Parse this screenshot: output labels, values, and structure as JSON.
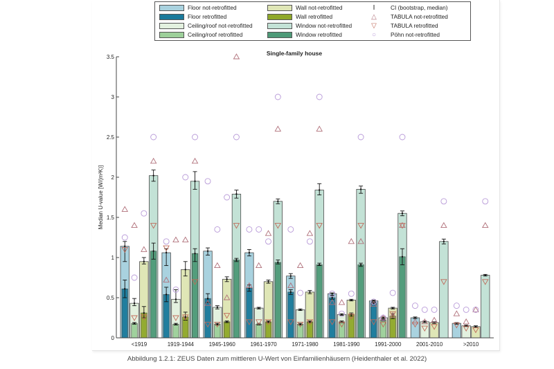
{
  "caption": "Abbildung 1.2.1: ZEUS Daten zum mittleren U-Wert von Einfamilienhäusern (Heidenthaler et al. 2022)",
  "legend": {
    "items": [
      {
        "label": "Floor not-retrofitted",
        "color": "#a9d2df",
        "kind": "swatch"
      },
      {
        "label": "Floor retrofitted",
        "color": "#1a7a9b",
        "kind": "swatch"
      },
      {
        "label": "Ceiling/roof not-retrofitted",
        "color": "#e3f1df",
        "kind": "swatch"
      },
      {
        "label": "Ceiling/roof retrofitted",
        "color": "#9dd09a",
        "kind": "swatch"
      },
      {
        "label": "Wall not-retrofitted",
        "color": "#dfe6b6",
        "kind": "swatch"
      },
      {
        "label": "Wall retrofitted",
        "color": "#8fa82a",
        "kind": "swatch"
      },
      {
        "label": "Window not-retrofitted",
        "color": "#c3e2d6",
        "kind": "swatch"
      },
      {
        "label": "Window retrofitted",
        "color": "#4e9a78",
        "kind": "swatch"
      },
      {
        "label": "CI (bootstrap, median)",
        "symbol": "I",
        "color": "#222222",
        "kind": "symbol"
      },
      {
        "label": "TABULA not-retrofitted",
        "symbol": "△",
        "color": "#b0707a",
        "kind": "symbol"
      },
      {
        "label": "TABULA retrofitted",
        "symbol": "▽",
        "color": "#c06a5a",
        "kind": "symbol"
      },
      {
        "label": "Pöhn not-retrofitted",
        "symbol": "○",
        "color": "#b89ad8",
        "kind": "symbol"
      }
    ]
  },
  "chart_data": {
    "type": "bar",
    "title": "Single-family house",
    "xlabel": "",
    "ylabel": "Median U-value [W/(m²K)]",
    "ylim": [
      0,
      3.5
    ],
    "yticks": [
      0,
      0.5,
      1,
      1.5,
      2,
      2.5,
      3,
      3.5
    ],
    "ytick_labels": [
      "0",
      "0.5",
      "1",
      "1.5",
      "2",
      "2.5",
      "3",
      "3.5"
    ],
    "grid": false,
    "legend_position": "top",
    "categories": [
      "<1919",
      "1919-1944",
      "1945-1960",
      "1961-1970",
      "1971-1980",
      "1981-1990",
      "1991-2000",
      "2001-2010",
      ">2010"
    ],
    "components": [
      "Floor",
      "Ceiling/roof",
      "Wall",
      "Window"
    ],
    "colors": {
      "Floor": {
        "not": "#a9d2df",
        "ret": "#1a7a9b"
      },
      "Ceiling/roof": {
        "not": "#e3f1df",
        "ret": "#9dd09a"
      },
      "Wall": {
        "not": "#dfe6b6",
        "ret": "#8fa82a"
      },
      "Window": {
        "not": "#c3e2d6",
        "ret": "#4e9a78"
      }
    },
    "series": [
      {
        "name": "Floor not-retrofitted",
        "values": [
          1.14,
          1.06,
          1.08,
          1.06,
          0.77,
          0.55,
          0.46,
          0.25,
          0.18
        ],
        "ci": [
          [
            0.95,
            1.2
          ],
          [
            0.9,
            1.11
          ],
          [
            1.03,
            1.12
          ],
          [
            1.02,
            1.1
          ],
          [
            0.74,
            0.8
          ],
          [
            0.53,
            0.56
          ],
          [
            0.44,
            0.47
          ],
          [
            0.24,
            0.26
          ],
          [
            0.17,
            0.19
          ]
        ]
      },
      {
        "name": "Floor retrofitted",
        "values": [
          0.61,
          0.54,
          0.49,
          0.62,
          0.57,
          0.5,
          0.44,
          null,
          null
        ],
        "ci": [
          [
            0.5,
            0.72
          ],
          [
            0.45,
            0.63
          ],
          [
            0.44,
            0.55
          ],
          [
            0.58,
            0.66
          ],
          [
            0.54,
            0.6
          ],
          [
            0.48,
            0.52
          ],
          [
            0.42,
            0.45
          ],
          null,
          null
        ]
      },
      {
        "name": "Ceiling/roof not-retrofitted",
        "values": [
          0.43,
          0.48,
          0.38,
          0.37,
          0.35,
          0.29,
          0.25,
          0.2,
          0.15
        ],
        "ci": [
          [
            0.4,
            0.49
          ],
          [
            0.44,
            0.6
          ],
          [
            0.36,
            0.4
          ],
          [
            0.36,
            0.38
          ],
          [
            0.34,
            0.36
          ],
          [
            0.28,
            0.3
          ],
          [
            0.24,
            0.26
          ],
          [
            0.19,
            0.21
          ],
          [
            0.14,
            0.16
          ]
        ]
      },
      {
        "name": "Ceiling/roof retrofitted",
        "values": [
          0.18,
          0.17,
          0.17,
          0.17,
          0.17,
          0.2,
          0.22,
          null,
          null
        ],
        "ci": [
          [
            0.17,
            0.19
          ],
          [
            0.16,
            0.18
          ],
          [
            0.16,
            0.18
          ],
          [
            0.16,
            0.18
          ],
          [
            0.16,
            0.18
          ],
          [
            0.19,
            0.21
          ],
          [
            0.21,
            0.23
          ],
          null,
          null
        ]
      },
      {
        "name": "Wall not-retrofitted",
        "values": [
          0.95,
          0.85,
          0.73,
          0.7,
          0.57,
          0.47,
          0.37,
          0.19,
          0.14
        ],
        "ci": [
          [
            0.92,
            1.0
          ],
          [
            0.77,
            0.95
          ],
          [
            0.7,
            0.76
          ],
          [
            0.68,
            0.72
          ],
          [
            0.55,
            0.59
          ],
          [
            0.46,
            0.48
          ],
          [
            0.36,
            0.38
          ],
          [
            0.18,
            0.2
          ],
          [
            0.13,
            0.15
          ]
        ]
      },
      {
        "name": "Wall retrofitted",
        "values": [
          0.31,
          0.26,
          0.2,
          0.2,
          0.2,
          0.29,
          0.27,
          null,
          null
        ],
        "ci": [
          [
            0.25,
            0.39
          ],
          [
            0.22,
            0.32
          ],
          [
            0.19,
            0.21
          ],
          [
            0.19,
            0.21
          ],
          [
            0.19,
            0.21
          ],
          [
            0.27,
            0.31
          ],
          [
            0.24,
            0.3
          ],
          null,
          null
        ]
      },
      {
        "name": "Window not-retrofitted",
        "values": [
          2.02,
          1.95,
          1.79,
          1.7,
          1.84,
          1.85,
          1.55,
          1.2,
          0.78
        ],
        "ci": [
          [
            1.95,
            2.09
          ],
          [
            1.85,
            2.07
          ],
          [
            1.74,
            1.84
          ],
          [
            1.67,
            1.73
          ],
          [
            1.78,
            1.92
          ],
          [
            1.8,
            1.89
          ],
          [
            1.52,
            1.58
          ],
          [
            1.17,
            1.23
          ],
          [
            0.77,
            0.79
          ]
        ]
      },
      {
        "name": "Window retrofitted",
        "values": [
          1.08,
          1.05,
          0.97,
          0.94,
          0.91,
          0.91,
          1.01,
          null,
          null
        ],
        "ci": [
          [
            0.98,
            1.18
          ],
          [
            0.95,
            1.11
          ],
          [
            0.95,
            0.99
          ],
          [
            0.92,
            0.97
          ],
          [
            0.9,
            0.93
          ],
          [
            0.89,
            0.93
          ],
          [
            0.91,
            1.11
          ],
          null,
          null
        ]
      }
    ],
    "markers": {
      "TABULA not-retrofitted": {
        "Floor": [
          1.6,
          0.72,
          0.43,
          0.65,
          0.65,
          0.44,
          0.42,
          0.2,
          0.3
        ],
        "Ceiling/roof": [
          1.4,
          1.22,
          0.9,
          0.9,
          0.9,
          0.44,
          0.25,
          0.2,
          0.2
        ],
        "Wall": [
          1.1,
          1.22,
          0.5,
          1.3,
          1.3,
          1.2,
          0.28,
          0.22,
          0.35
        ],
        "Window": [
          2.2,
          2.2,
          3.5,
          2.6,
          2.6,
          1.2,
          1.4,
          1.4,
          1.4
        ]
      },
      "TABULA retrofitted": {
        "Floor": [
          1.1,
          1.12,
          0.17,
          0.2,
          0.2,
          0.2,
          0.2,
          0.17,
          0.16
        ],
        "Ceiling/roof": [
          0.25,
          0.25,
          0.17,
          0.2,
          0.17,
          0.17,
          0.17,
          0.12,
          0.12
        ],
        "Wall": [
          0.26,
          0.26,
          0.28,
          0.2,
          0.2,
          0.27,
          0.3,
          0.14,
          0.1
        ],
        "Window": [
          1.4,
          0.7,
          1.4,
          1.4,
          1.4,
          1.4,
          1.4,
          0.7,
          0.7
        ]
      },
      "Pöhn not-retrofitted": {
        "Floor": [
          1.25,
          1.2,
          1.95,
          1.35,
          1.35,
          0.55,
          0.45,
          0.4,
          0.4
        ],
        "Ceiling/roof": [
          0.75,
          0.6,
          1.35,
          1.35,
          0.56,
          0.3,
          0.25,
          0.35,
          0.35
        ],
        "Wall": [
          1.55,
          2.0,
          1.75,
          1.2,
          1.2,
          0.55,
          0.56,
          0.35,
          0.35
        ],
        "Window": [
          2.5,
          2.5,
          2.5,
          3.0,
          3.0,
          2.5,
          2.5,
          1.7,
          1.7
        ]
      }
    }
  }
}
